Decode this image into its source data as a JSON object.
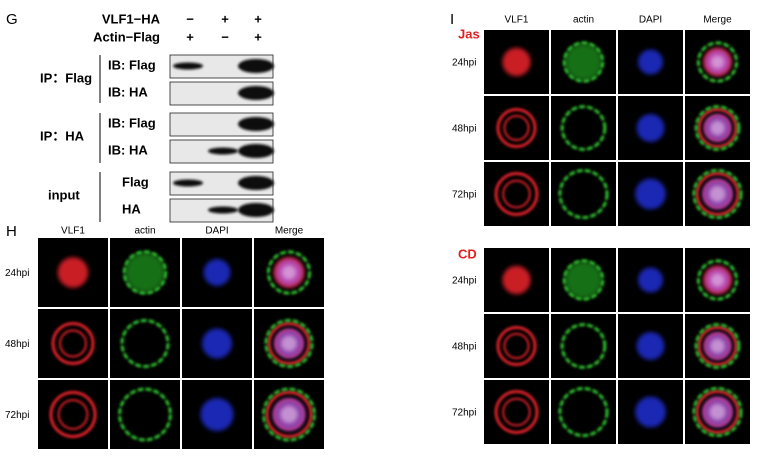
{
  "panel_g": {
    "label": "G",
    "treatments": [
      {
        "name": "VLF1−HA",
        "signs": [
          "−",
          "+",
          "+"
        ]
      },
      {
        "name": "Actin−Flag",
        "signs": [
          "+",
          "−",
          "+"
        ]
      }
    ],
    "groups": [
      {
        "label": "IP：Flag",
        "blots": [
          "IB: Flag",
          "IB: HA"
        ]
      },
      {
        "label": "IP：HA",
        "blots": [
          "IB: Flag",
          "IB: HA"
        ]
      },
      {
        "label": "input",
        "blots": [
          "Flag",
          "HA"
        ]
      }
    ]
  },
  "panel_h": {
    "label": "H",
    "columns": [
      "VLF1",
      "actin",
      "DAPI",
      "Merge"
    ],
    "rows": [
      "24hpi",
      "48hpi",
      "72hpi"
    ]
  },
  "panel_i": {
    "label": "I",
    "columns": [
      "VLF1",
      "actin",
      "DAPI",
      "Merge"
    ],
    "conditions": [
      {
        "name": "Jas",
        "rows": [
          "24hpi",
          "48hpi",
          "72hpi"
        ]
      },
      {
        "name": "CD",
        "rows": [
          "24hpi",
          "48hpi",
          "72hpi"
        ]
      }
    ]
  }
}
